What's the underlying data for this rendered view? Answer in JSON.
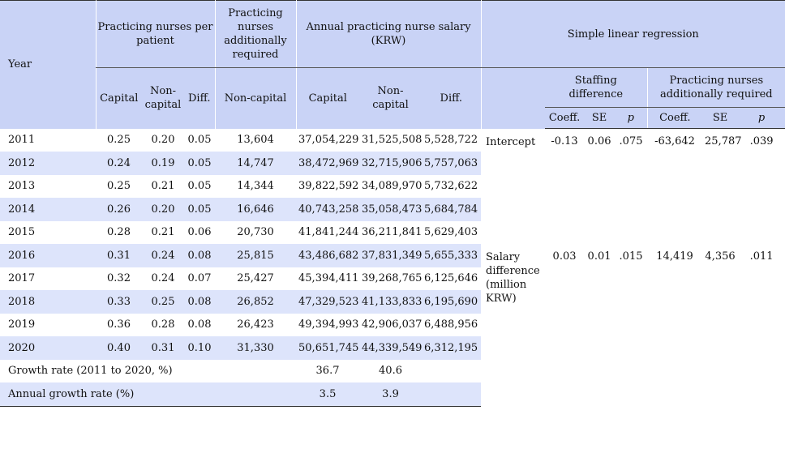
{
  "headers": {
    "year": "Year",
    "nurses_per_patient": "Practicing nurses per patient",
    "additionally_required": "Practicing nurses additionally required",
    "annual_salary": "Annual practicing nurse salary (KRW)",
    "regression": "Simple linear regression",
    "capital": "Capital",
    "non_capital": "Non-capital",
    "diff": "Diff.",
    "staffing_difference": "Staffing difference",
    "reg_additionally_required": "Practicing nurses additionally required",
    "coeff": "Coeff.",
    "se": "SE",
    "p": "p"
  },
  "rows": [
    {
      "year": "2011",
      "cap": "0.25",
      "noncap": "0.20",
      "diff": "0.05",
      "req": "13,604",
      "sal_cap": "37,054,229",
      "sal_noncap": "31,525,508",
      "sal_diff": "5,528,722"
    },
    {
      "year": "2012",
      "cap": "0.24",
      "noncap": "0.19",
      "diff": "0.05",
      "req": "14,747",
      "sal_cap": "38,472,969",
      "sal_noncap": "32,715,906",
      "sal_diff": "5,757,063"
    },
    {
      "year": "2013",
      "cap": "0.25",
      "noncap": "0.21",
      "diff": "0.05",
      "req": "14,344",
      "sal_cap": "39,822,592",
      "sal_noncap": "34,089,970",
      "sal_diff": "5,732,622"
    },
    {
      "year": "2014",
      "cap": "0.26",
      "noncap": "0.20",
      "diff": "0.05",
      "req": "16,646",
      "sal_cap": "40,743,258",
      "sal_noncap": "35,058,473",
      "sal_diff": "5,684,784"
    },
    {
      "year": "2015",
      "cap": "0.28",
      "noncap": "0.21",
      "diff": "0.06",
      "req": "20,730",
      "sal_cap": "41,841,244",
      "sal_noncap": "36,211,841",
      "sal_diff": "5,629,403"
    },
    {
      "year": "2016",
      "cap": "0.31",
      "noncap": "0.24",
      "diff": "0.08",
      "req": "25,815",
      "sal_cap": "43,486,682",
      "sal_noncap": "37,831,349",
      "sal_diff": "5,655,333"
    },
    {
      "year": "2017",
      "cap": "0.32",
      "noncap": "0.24",
      "diff": "0.07",
      "req": "25,427",
      "sal_cap": "45,394,411",
      "sal_noncap": "39,268,765",
      "sal_diff": "6,125,646"
    },
    {
      "year": "2018",
      "cap": "0.33",
      "noncap": "0.25",
      "diff": "0.08",
      "req": "26,852",
      "sal_cap": "47,329,523",
      "sal_noncap": "41,133,833",
      "sal_diff": "6,195,690"
    },
    {
      "year": "2019",
      "cap": "0.36",
      "noncap": "0.28",
      "diff": "0.08",
      "req": "26,423",
      "sal_cap": "49,394,993",
      "sal_noncap": "42,906,037",
      "sal_diff": "6,488,956"
    },
    {
      "year": "2020",
      "cap": "0.40",
      "noncap": "0.31",
      "diff": "0.10",
      "req": "31,330",
      "sal_cap": "50,651,745",
      "sal_noncap": "44,339,549",
      "sal_diff": "6,312,195"
    }
  ],
  "growth": {
    "growth_label": "Growth rate (2011 to 2020, %)",
    "growth_cap": "36.7",
    "growth_noncap": "40.6",
    "annual_label": "Annual growth rate (%)",
    "annual_cap": "3.5",
    "annual_noncap": "3.9"
  },
  "regression": {
    "intercept": {
      "label": "Intercept",
      "staff_coeff": "-0.13",
      "staff_se": "0.06",
      "staff_p": ".075",
      "req_coeff": "-63,642",
      "req_se": "25,787",
      "req_p": ".039"
    },
    "salary": {
      "label": "Salary difference (million KRW)",
      "staff_coeff": "0.03",
      "staff_se": "0.01",
      "staff_p": ".015",
      "req_coeff": "14,419",
      "req_se": "4,356",
      "req_p": ".011"
    }
  }
}
